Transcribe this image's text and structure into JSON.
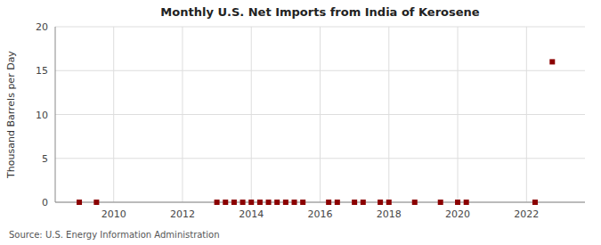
{
  "chart_data": {
    "type": "scatter",
    "title": "Monthly U.S. Net Imports from India of Kerosene",
    "ylabel": "Thousand Barrels per Day",
    "source": "Source: U.S. Energy Information Administration",
    "x": [
      2009.0,
      2009.5,
      2013.0,
      2013.25,
      2013.5,
      2013.75,
      2014.0,
      2014.25,
      2014.5,
      2014.75,
      2015.0,
      2015.25,
      2015.5,
      2016.25,
      2016.5,
      2017.0,
      2017.25,
      2017.75,
      2018.0,
      2018.75,
      2019.5,
      2020.0,
      2020.25,
      2022.25,
      2022.75
    ],
    "values": [
      0,
      0,
      0,
      0,
      0,
      0,
      0,
      0,
      0,
      0,
      0,
      0,
      0,
      0,
      0,
      0,
      0,
      0,
      0,
      0,
      0,
      0,
      0,
      0,
      16
    ],
    "color": "#8b0000",
    "marker": "square",
    "xlim": [
      2008.3,
      2023.7
    ],
    "xticks": [
      2010,
      2012,
      2014,
      2016,
      2018,
      2020,
      2022
    ],
    "ylim": [
      0,
      20
    ],
    "yticks": [
      0,
      5,
      10,
      15,
      20
    ],
    "grid": true
  }
}
